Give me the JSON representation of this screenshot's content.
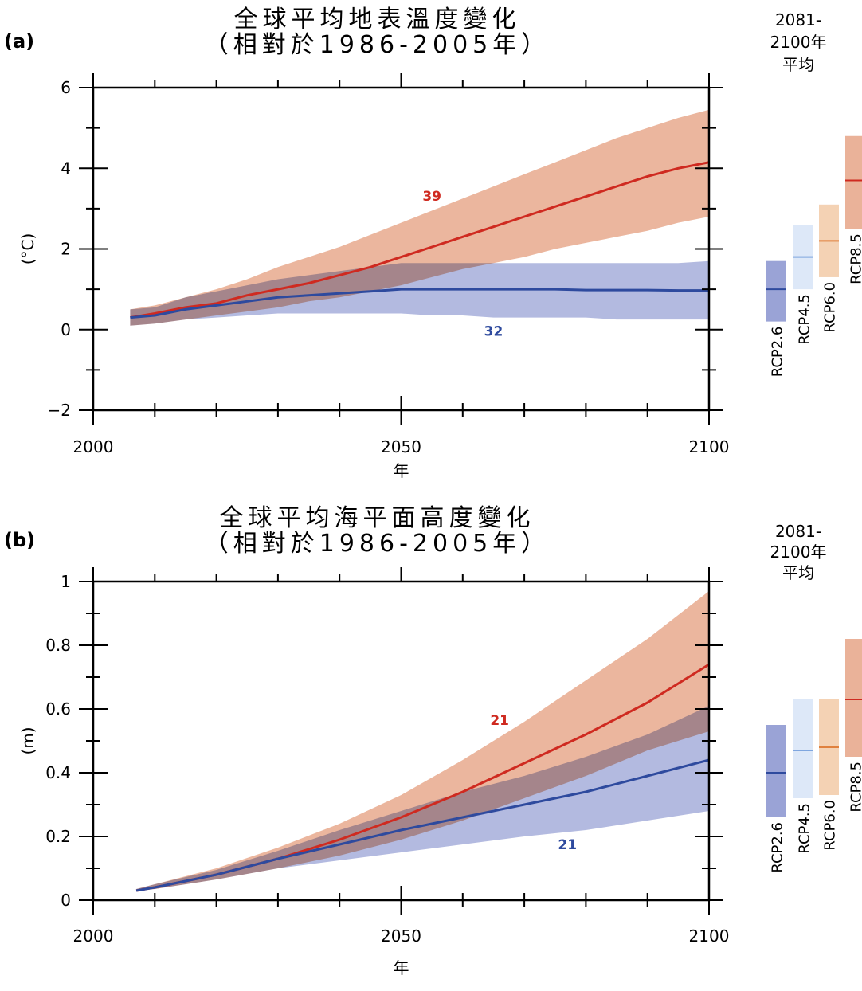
{
  "colors": {
    "rcp26_line": "#2e4a9e",
    "rcp26_band": "#9aa3d6",
    "rcp45_line": "#7fa6df",
    "rcp45_band": "#dde8f8",
    "rcp60_line": "#e0813e",
    "rcp60_band": "#f4d2b4",
    "rcp85_line": "#cf2a20",
    "rcp85_band": "#eab299",
    "overlap": "#c08a8d"
  },
  "side_header": [
    "2081-",
    "2100年",
    "平均"
  ],
  "chart_data": [
    {
      "id": "a",
      "type": "line",
      "panel_label": "(a)",
      "title": [
        "全球平均地表溫度變化",
        "（相對於1986-2005年）"
      ],
      "xlabel": "年",
      "ylabel": "(°C)",
      "xlim": [
        2000,
        2100
      ],
      "ylim": [
        -2,
        6
      ],
      "xticks": [
        2000,
        2050,
        2100
      ],
      "xticklabels": [
        "2000",
        "2050",
        "2100"
      ],
      "yticks": [
        -2,
        0,
        2,
        4,
        6
      ],
      "yticklabels": [
        "−2",
        "0",
        "2",
        "4",
        "6"
      ],
      "minor_xstep": 10,
      "minor_ystep": 1,
      "x": [
        2006,
        2010,
        2015,
        2020,
        2025,
        2030,
        2035,
        2040,
        2045,
        2050,
        2055,
        2060,
        2065,
        2070,
        2075,
        2080,
        2085,
        2090,
        2095,
        2100
      ],
      "series": [
        {
          "name": "RCP8.5",
          "count": "39",
          "count_pos": [
            2055,
            3.2
          ],
          "mean": [
            0.3,
            0.4,
            0.55,
            0.65,
            0.85,
            1.0,
            1.15,
            1.35,
            1.55,
            1.8,
            2.05,
            2.3,
            2.55,
            2.8,
            3.05,
            3.3,
            3.55,
            3.8,
            4.0,
            4.15
          ],
          "lower": [
            0.1,
            0.15,
            0.25,
            0.35,
            0.45,
            0.55,
            0.7,
            0.8,
            0.95,
            1.1,
            1.3,
            1.5,
            1.65,
            1.8,
            2.0,
            2.15,
            2.3,
            2.45,
            2.65,
            2.8
          ],
          "upper": [
            0.5,
            0.6,
            0.8,
            1.0,
            1.25,
            1.55,
            1.8,
            2.05,
            2.35,
            2.65,
            2.95,
            3.25,
            3.55,
            3.85,
            4.15,
            4.45,
            4.75,
            5.0,
            5.25,
            5.45
          ]
        },
        {
          "name": "RCP2.6",
          "count": "32",
          "count_pos": [
            2065,
            -0.15
          ],
          "mean": [
            0.3,
            0.35,
            0.5,
            0.6,
            0.7,
            0.8,
            0.85,
            0.9,
            0.95,
            1.0,
            1.0,
            1.0,
            1.0,
            1.0,
            1.0,
            0.98,
            0.98,
            0.98,
            0.97,
            0.97
          ],
          "lower": [
            0.1,
            0.15,
            0.25,
            0.3,
            0.35,
            0.4,
            0.4,
            0.4,
            0.4,
            0.4,
            0.35,
            0.35,
            0.3,
            0.3,
            0.3,
            0.3,
            0.25,
            0.25,
            0.25,
            0.25
          ],
          "upper": [
            0.5,
            0.55,
            0.8,
            0.95,
            1.1,
            1.25,
            1.35,
            1.45,
            1.55,
            1.65,
            1.65,
            1.65,
            1.65,
            1.65,
            1.65,
            1.65,
            1.65,
            1.65,
            1.65,
            1.7
          ]
        }
      ],
      "period_means": [
        {
          "name": "RCP2.6",
          "mean": 1.0,
          "low": 0.2,
          "high": 1.7
        },
        {
          "name": "RCP4.5",
          "mean": 1.8,
          "low": 1.0,
          "high": 2.6
        },
        {
          "name": "RCP6.0",
          "mean": 2.2,
          "low": 1.3,
          "high": 3.1
        },
        {
          "name": "RCP8.5",
          "mean": 3.7,
          "low": 2.5,
          "high": 4.8
        }
      ]
    },
    {
      "id": "b",
      "type": "line",
      "panel_label": "(b)",
      "title": [
        "全球平均海平面高度變化",
        "（相對於1986-2005年）"
      ],
      "xlabel": "年",
      "ylabel": "(m)",
      "xlim": [
        2000,
        2100
      ],
      "ylim": [
        0,
        1
      ],
      "xticks": [
        2000,
        2050,
        2100
      ],
      "xticklabels": [
        "2000",
        "2050",
        "2100"
      ],
      "yticks": [
        0,
        0.2,
        0.4,
        0.6,
        0.8,
        1
      ],
      "yticklabels": [
        "0",
        "0.2",
        "0.4",
        "0.6",
        "0.8",
        "1"
      ],
      "minor_xstep": 10,
      "minor_ystep": 0.1,
      "x": [
        2007,
        2010,
        2020,
        2030,
        2040,
        2050,
        2060,
        2070,
        2080,
        2090,
        2100
      ],
      "series": [
        {
          "name": "RCP8.5",
          "count": "21",
          "count_pos": [
            2066,
            0.55
          ],
          "mean": [
            0.03,
            0.04,
            0.08,
            0.13,
            0.19,
            0.26,
            0.34,
            0.43,
            0.52,
            0.62,
            0.74
          ],
          "lower": [
            0.03,
            0.035,
            0.065,
            0.1,
            0.14,
            0.19,
            0.25,
            0.32,
            0.39,
            0.47,
            0.53
          ],
          "upper": [
            0.035,
            0.05,
            0.1,
            0.165,
            0.24,
            0.33,
            0.44,
            0.56,
            0.69,
            0.82,
            0.97
          ]
        },
        {
          "name": "RCP2.6",
          "count": "21",
          "count_pos": [
            2077,
            0.16
          ],
          "mean": [
            0.03,
            0.04,
            0.08,
            0.13,
            0.175,
            0.22,
            0.26,
            0.3,
            0.34,
            0.39,
            0.44
          ],
          "lower": [
            0.03,
            0.035,
            0.065,
            0.1,
            0.125,
            0.15,
            0.175,
            0.2,
            0.22,
            0.25,
            0.28
          ],
          "upper": [
            0.035,
            0.05,
            0.095,
            0.155,
            0.22,
            0.28,
            0.34,
            0.39,
            0.45,
            0.52,
            0.61
          ]
        }
      ],
      "period_means": [
        {
          "name": "RCP2.6",
          "mean": 0.4,
          "low": 0.26,
          "high": 0.55
        },
        {
          "name": "RCP4.5",
          "mean": 0.47,
          "low": 0.32,
          "high": 0.63
        },
        {
          "name": "RCP6.0",
          "mean": 0.48,
          "low": 0.33,
          "high": 0.63
        },
        {
          "name": "RCP8.5",
          "mean": 0.63,
          "low": 0.45,
          "high": 0.82
        }
      ]
    }
  ]
}
